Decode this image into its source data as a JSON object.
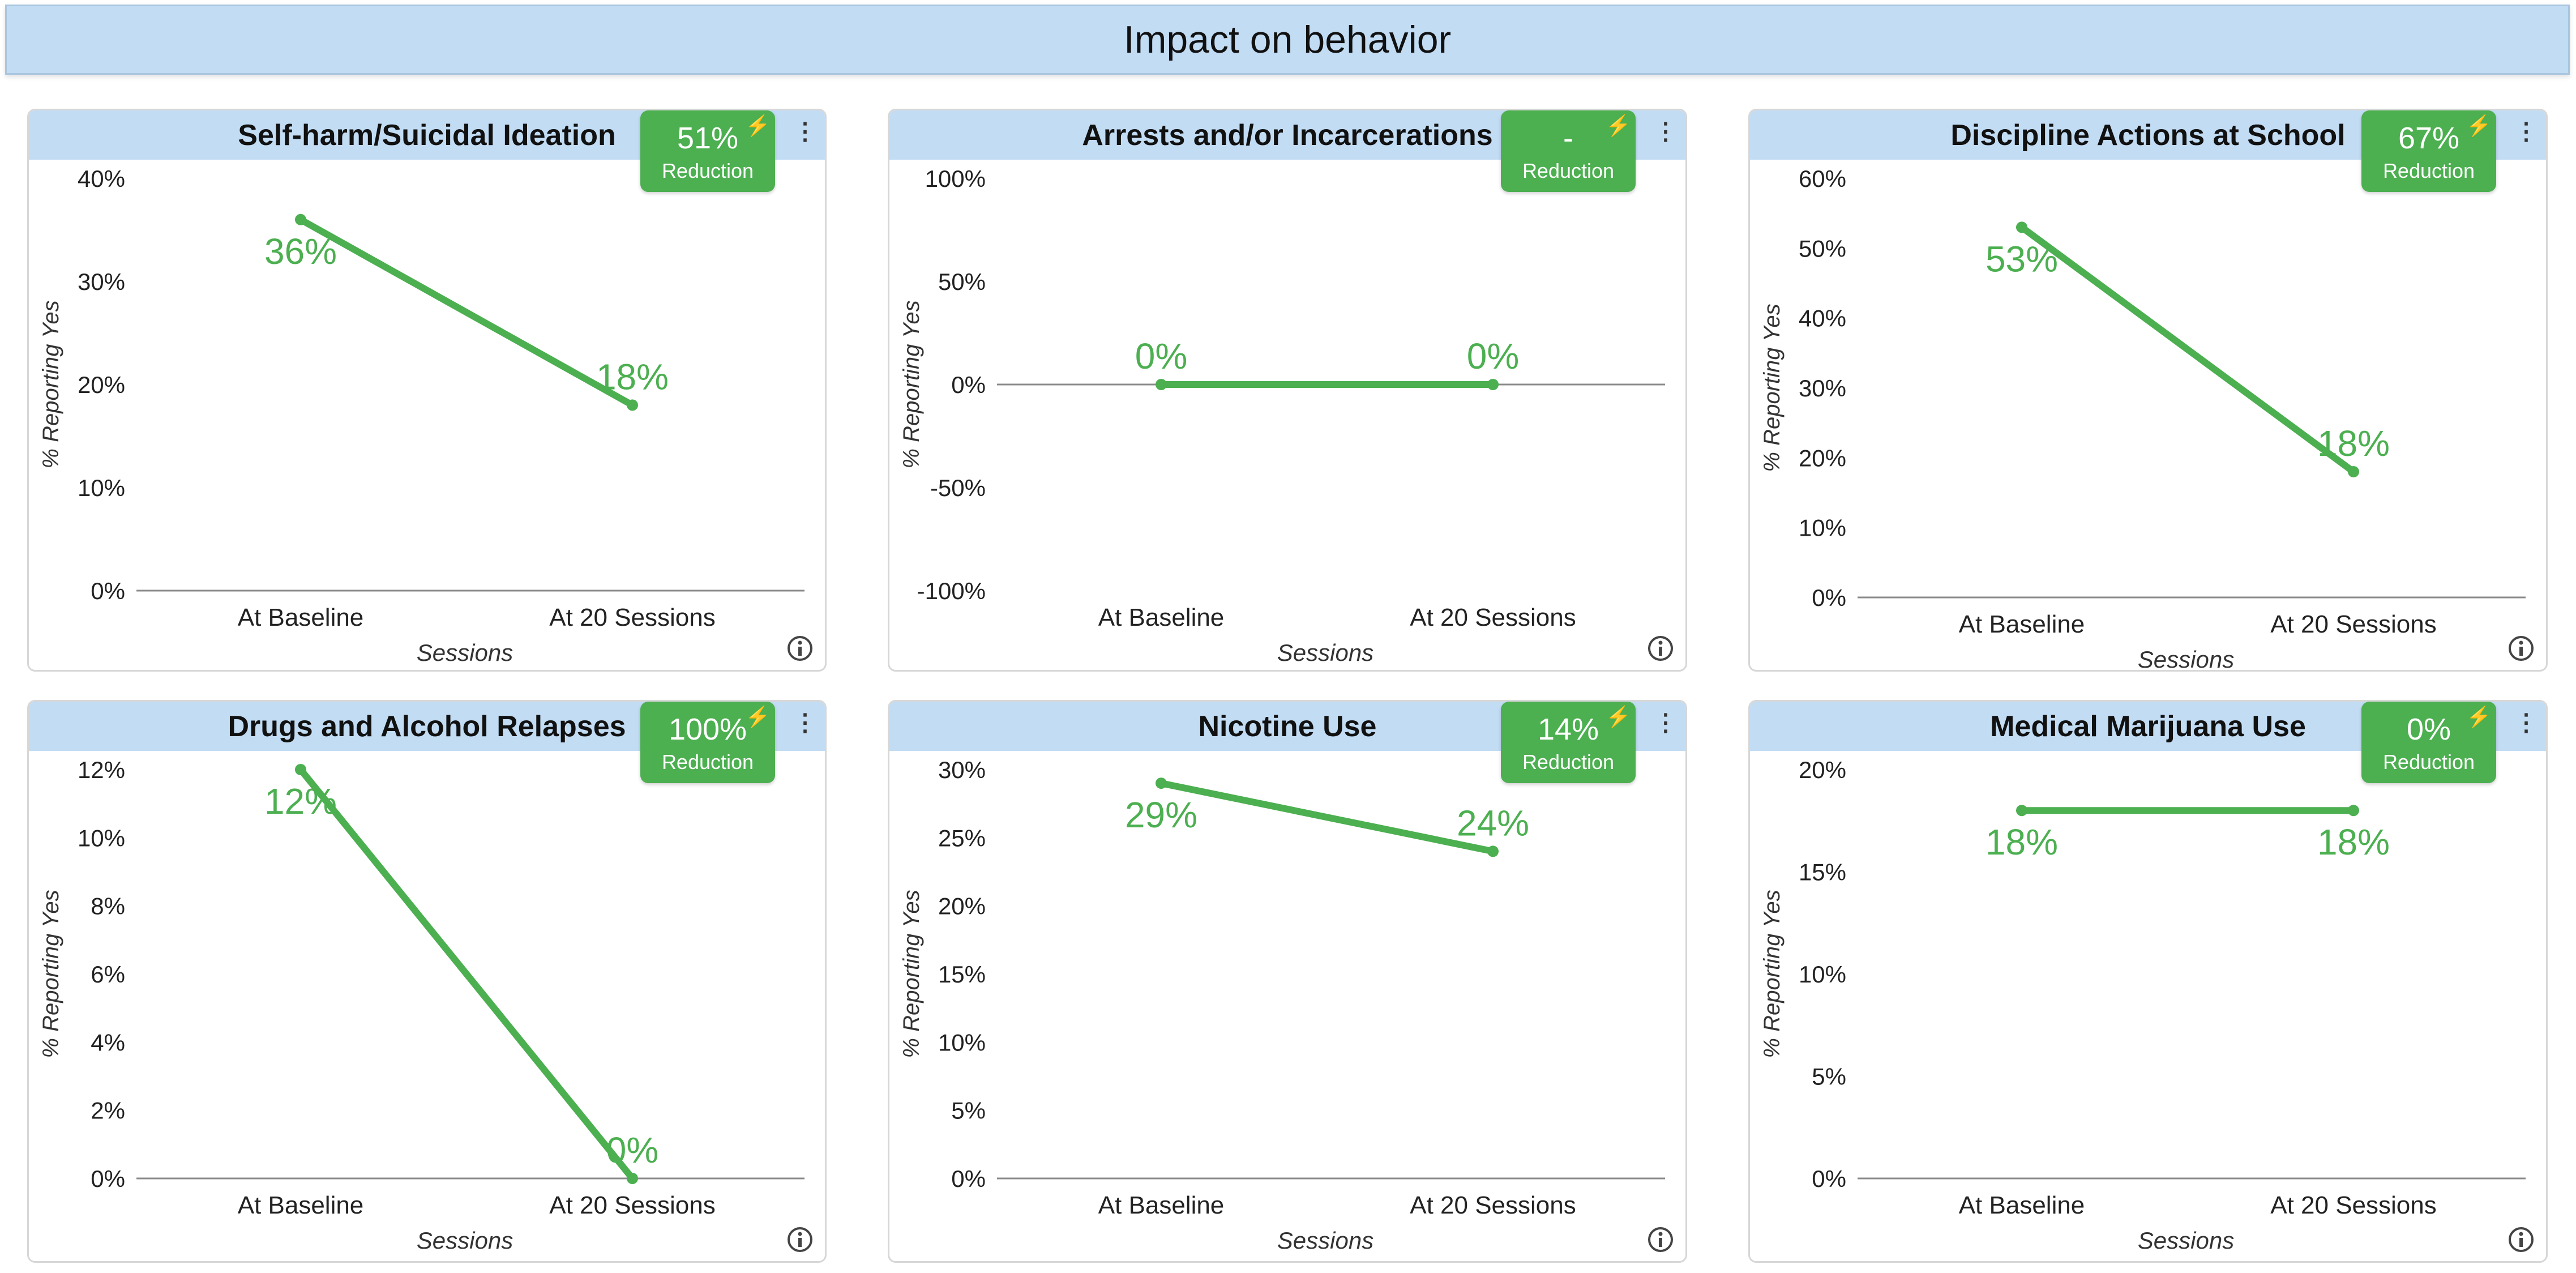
{
  "page": {
    "title": "Impact on behavior"
  },
  "colors": {
    "line": "#4caf50",
    "badge": "#4caf50",
    "header": "#c2dcf4",
    "axis": "#555555",
    "tick_text": "#222222"
  },
  "icons": {
    "badge_icon": "bolt-icon",
    "menu": "vertical-dots-icon",
    "info": "info-icon"
  },
  "chart_data": [
    {
      "type": "line",
      "title": "Self-harm/Suicidal Ideation",
      "badge": {
        "value": "51%",
        "label": "Reduction"
      },
      "categories": [
        "At Baseline",
        "At 20 Sessions"
      ],
      "series": [
        {
          "name": "% Reporting Yes",
          "values": [
            36,
            18
          ]
        }
      ],
      "data_labels": [
        "36%",
        "18%"
      ],
      "xlabel": "Sessions",
      "ylabel": "% Reporting Yes",
      "ylim": [
        0,
        40
      ],
      "yticks": [
        0,
        10,
        20,
        30,
        40
      ],
      "ytick_labels": [
        "0%",
        "10%",
        "20%",
        "30%",
        "40%"
      ]
    },
    {
      "type": "line",
      "title": "Arrests and/or Incarcerations",
      "badge": {
        "value": "-",
        "label": "Reduction"
      },
      "categories": [
        "At Baseline",
        "At 20 Sessions"
      ],
      "series": [
        {
          "name": "% Reporting Yes",
          "values": [
            0,
            0
          ]
        }
      ],
      "data_labels": [
        "0%",
        "0%"
      ],
      "xlabel": "Sessions",
      "ylabel": "% Reporting Yes",
      "ylim": [
        -100,
        100
      ],
      "yticks": [
        -100,
        -50,
        0,
        50,
        100
      ],
      "ytick_labels": [
        "-100%",
        "-50%",
        "0%",
        "50%",
        "100%"
      ]
    },
    {
      "type": "line",
      "title": "Discipline Actions at School",
      "badge": {
        "value": "67%",
        "label": "Reduction"
      },
      "categories": [
        "At Baseline",
        "At 20 Sessions"
      ],
      "series": [
        {
          "name": "% Reporting Yes",
          "values": [
            53,
            18
          ]
        }
      ],
      "data_labels": [
        "53%",
        "18%"
      ],
      "xlabel": "Sessions",
      "ylabel": "% Reporting Yes",
      "ylim": [
        0,
        60
      ],
      "yticks": [
        0,
        10,
        20,
        30,
        40,
        50,
        60
      ],
      "ytick_labels": [
        "0%",
        "10%",
        "20%",
        "30%",
        "40%",
        "50%",
        "60%"
      ]
    },
    {
      "type": "line",
      "title": "Drugs and Alcohol Relapses",
      "badge": {
        "value": "100%",
        "label": "Reduction"
      },
      "categories": [
        "At Baseline",
        "At 20 Sessions"
      ],
      "series": [
        {
          "name": "% Reporting Yes",
          "values": [
            12,
            0
          ]
        }
      ],
      "data_labels": [
        "12%",
        "0%"
      ],
      "xlabel": "Sessions",
      "ylabel": "% Reporting Yes",
      "ylim": [
        0,
        12
      ],
      "yticks": [
        0,
        2,
        4,
        6,
        8,
        10,
        12
      ],
      "ytick_labels": [
        "0%",
        "2%",
        "4%",
        "6%",
        "8%",
        "10%",
        "12%"
      ]
    },
    {
      "type": "line",
      "title": "Nicotine Use",
      "badge": {
        "value": "14%",
        "label": "Reduction"
      },
      "categories": [
        "At Baseline",
        "At 20 Sessions"
      ],
      "series": [
        {
          "name": "% Reporting Yes",
          "values": [
            29,
            24
          ]
        }
      ],
      "data_labels": [
        "29%",
        "24%"
      ],
      "xlabel": "Sessions",
      "ylabel": "% Reporting Yes",
      "ylim": [
        0,
        30
      ],
      "yticks": [
        0,
        5,
        10,
        15,
        20,
        25,
        30
      ],
      "ytick_labels": [
        "0%",
        "5%",
        "10%",
        "15%",
        "20%",
        "25%",
        "30%"
      ]
    },
    {
      "type": "line",
      "title": "Medical Marijuana Use",
      "badge": {
        "value": "0%",
        "label": "Reduction"
      },
      "categories": [
        "At Baseline",
        "At 20 Sessions"
      ],
      "series": [
        {
          "name": "% Reporting Yes",
          "values": [
            18,
            18
          ]
        }
      ],
      "data_labels": [
        "18%",
        "18%"
      ],
      "xlabel": "Sessions",
      "ylabel": "% Reporting Yes",
      "ylim": [
        0,
        20
      ],
      "yticks": [
        0,
        5,
        10,
        15,
        20
      ],
      "ytick_labels": [
        "0%",
        "5%",
        "10%",
        "15%",
        "20%"
      ]
    }
  ]
}
